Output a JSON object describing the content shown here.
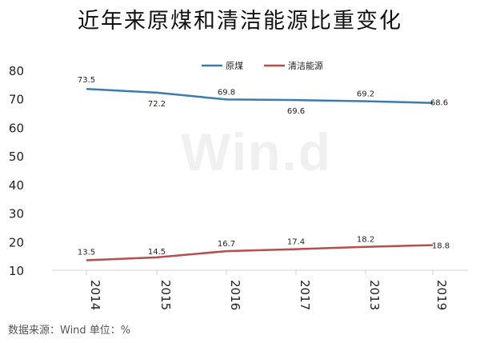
{
  "watermark": "Win.d",
  "footer": {
    "source": "数据来源：Wind   单位：%"
  },
  "chart_data": {
    "type": "line",
    "title": "近年来原煤和清洁能源比重变化",
    "categories": [
      "2014",
      "2015",
      "2016",
      "2017",
      "2013",
      "2019"
    ],
    "series": [
      {
        "name": "原煤",
        "color": "#3b7bb0",
        "values": [
          73.5,
          72.2,
          69.8,
          69.6,
          69.2,
          68.6
        ]
      },
      {
        "name": "清洁能源",
        "color": "#b94c4c",
        "values": [
          13.5,
          14.5,
          16.7,
          17.4,
          18.2,
          18.8
        ]
      }
    ],
    "yticks": [
      10,
      20,
      30,
      40,
      50,
      60,
      70,
      80
    ],
    "ylim": [
      10,
      80
    ],
    "grid": false,
    "legend": "top-center"
  }
}
